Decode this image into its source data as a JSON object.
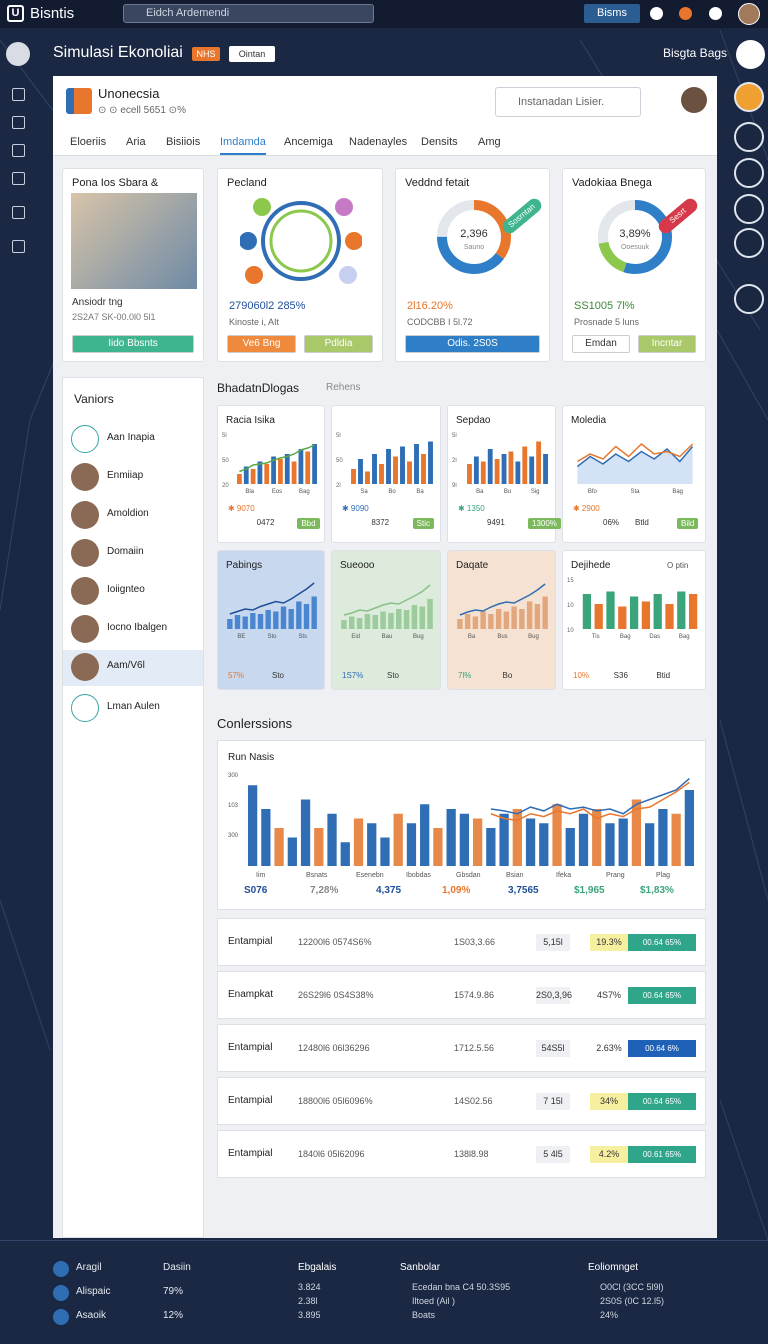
{
  "topbar": {
    "logo_mark": "U",
    "logo": "Bisntis",
    "search": "Eidch Ardemendi",
    "button": "Bisms"
  },
  "header": {
    "title": "Simulasi Ekonoliai",
    "badge": "NHS",
    "tag": "Ointan",
    "right": "Bisgta Bags"
  },
  "panel": {
    "name": "Unonecsia",
    "meta": "⊙ ⊙ ecell 5651 ⊙%",
    "search": "Instanadan Lisier."
  },
  "tabs": [
    "Eloeriis",
    "Aria",
    "Bisiiois",
    "Imdamda",
    "Ancemiga",
    "Nadenayles",
    "Densits",
    "Amg"
  ],
  "active_tab": 3,
  "cards": [
    {
      "title": "Pona Ios Sbara &",
      "line1": "Ansiodr tng",
      "line2": "2S2A7 SK-00.0l0 5l1",
      "buttons": [
        "Iido Bbsnts"
      ],
      "button_colors": [
        "#3fb58f"
      ]
    },
    {
      "title": "Pecland",
      "value": "279060l2 285%",
      "sub": "Kinoste i, AIt",
      "buttons": [
        "Ve6 Bng",
        "Pdldia"
      ],
      "button_colors": [
        "#ef8a3c",
        "#a9c86a"
      ]
    },
    {
      "title": "Veddnd fetait",
      "center": "2,396",
      "center_sub": "Sauno",
      "badge": "Sosrntan",
      "badge_color": "#3fb58f",
      "value": "2l16.20%",
      "sub": "CODCBB I 5l.72",
      "segments": [
        {
          "value": 35,
          "color": "#e8762c"
        },
        {
          "value": 40,
          "color": "#2f7fc8"
        },
        {
          "value": 25,
          "color": "#e3e6eb"
        }
      ],
      "buttons": [
        "Odis. 2S0S"
      ],
      "button_colors": [
        "#2f7fc8"
      ]
    },
    {
      "title": "Vadokiaa Bnega",
      "center": "3,89%",
      "center_sub": "Ooesuuk",
      "badge": "Sesrt",
      "badge_color": "#d63a4a",
      "value": "SS1005 7l%",
      "sub": "Prosnade 5 luns",
      "segments": [
        {
          "value": 55,
          "color": "#2f7fc8"
        },
        {
          "value": 17,
          "color": "#8cc84b"
        },
        {
          "value": 28,
          "color": "#e3e6eb"
        }
      ],
      "buttons": [
        "Emdan",
        "Incntar"
      ],
      "button_colors": [
        "#ffffff",
        "#a9c86a"
      ]
    }
  ],
  "list": {
    "title": "Vaniors",
    "items": [
      "Aan Inapia",
      "Enmiiap",
      "Amoldion",
      "Domaiin",
      "Ioiignteo",
      "Iocno Ibalgen",
      "Aam/V6l",
      "Lman Aulen"
    ],
    "selected": 6
  },
  "section1": {
    "title": "BhadatnDlogas",
    "tag": "Rehens"
  },
  "minis": [
    {
      "title": "Racia Isika",
      "bg": "#ffffff",
      "ylabels": [
        "5l",
        "50",
        "20"
      ],
      "xlabels": [
        "Bla",
        "Eos",
        "Bag"
      ],
      "bars": [
        20,
        35,
        30,
        45,
        40,
        55,
        50,
        60,
        45,
        70,
        65,
        80
      ],
      "bar_colors": [
        "#e8762c",
        "#2f6db5"
      ],
      "lines": [
        {
          "color": "#5aa84a",
          "values": [
            25,
            30,
            38,
            40,
            42,
            48,
            52,
            55,
            60,
            68,
            72,
            78
          ]
        }
      ],
      "footer": [
        "✱ 9070",
        "0472",
        "Bbd"
      ]
    },
    {
      "bg": "#ffffff",
      "ylabels": [
        "5l",
        "50",
        "2l"
      ],
      "xlabels": [
        "Sa",
        "Bo",
        "Ba"
      ],
      "bars": [
        30,
        50,
        25,
        60,
        40,
        70,
        55,
        75,
        45,
        80,
        60,
        85
      ],
      "bar_colors": [
        "#e8762c",
        "#2f6db5"
      ],
      "footer": [
        "✱ 9090",
        "8372",
        "Stic"
      ]
    },
    {
      "title": "Sepdao",
      "bg": "#ffffff",
      "ylabels": [
        "5l",
        "2l",
        "9l"
      ],
      "xlabels": [
        "Ba",
        "Bu",
        "Sig"
      ],
      "bars": [
        40,
        55,
        45,
        70,
        50,
        60,
        65,
        45,
        75,
        55,
        85,
        60
      ],
      "bar_colors": [
        "#e8762c",
        "#2f6db5"
      ],
      "footer": [
        "✱ 1350",
        "9491",
        "1300%"
      ]
    },
    {
      "title": "Moledia",
      "bg": "#ffffff",
      "xlabels": [
        "Bfo",
        "Sta",
        "Bag"
      ],
      "lines": [
        {
          "color": "#2f6db5",
          "values": [
            35,
            55,
            40,
            60,
            45,
            65,
            50,
            70,
            45,
            75
          ]
        },
        {
          "color": "#e8762c",
          "values": [
            45,
            60,
            50,
            75,
            55,
            80,
            60,
            65,
            55,
            80
          ]
        }
      ],
      "area": true,
      "footer": [
        "✱ 2900",
        "06%",
        "Btld",
        "Bild"
      ]
    },
    {
      "title": "Pabings",
      "bg": "#c7d8ef",
      "xlabels": [
        "BE",
        "Sto",
        "Sts"
      ],
      "bars": [
        20,
        28,
        25,
        32,
        30,
        38,
        35,
        45,
        40,
        55,
        50,
        65
      ],
      "bar_colors": [
        "#4a86d0"
      ],
      "lines": [
        {
          "color": "#1f4f99",
          "values": [
            30,
            35,
            40,
            38,
            45,
            50,
            55,
            52,
            60,
            70,
            80,
            92
          ]
        }
      ],
      "footer": [
        "57%",
        "Sto"
      ]
    },
    {
      "title": "Sueooo",
      "bg": "#dcebdc",
      "xlabels": [
        "Eid",
        "Bau",
        "Bug"
      ],
      "bars": [
        18,
        25,
        22,
        30,
        28,
        35,
        32,
        40,
        38,
        48,
        45,
        60
      ],
      "bar_colors": [
        "#9ccc9c"
      ],
      "lines": [
        {
          "color": "#8abf8a",
          "values": [
            28,
            32,
            38,
            36,
            42,
            48,
            52,
            50,
            58,
            66,
            75,
            88
          ]
        }
      ],
      "footer": [
        "1S7%",
        "Sto"
      ]
    },
    {
      "title": "Daqate",
      "bg": "#f6e2d3",
      "xlabels": [
        "Ba",
        "Bus",
        "Bug"
      ],
      "bars": [
        20,
        30,
        25,
        35,
        30,
        40,
        35,
        45,
        40,
        55,
        50,
        65
      ],
      "bar_colors": [
        "#e2a77d"
      ],
      "lines": [
        {
          "color": "#2f6db5",
          "values": [
            28,
            34,
            38,
            36,
            44,
            50,
            54,
            52,
            60,
            68,
            78,
            90
          ]
        }
      ],
      "footer": [
        "7l%",
        "Bo"
      ]
    },
    {
      "title": "Dejihede",
      "corner": "O ptin",
      "bg": "#ffffff",
      "ylabels": [
        "15",
        "10",
        "10"
      ],
      "xlabels": [
        "Tis",
        "Bag",
        "Das",
        "Bag"
      ],
      "bars": [
        70,
        50,
        75,
        45,
        65,
        55,
        70,
        50,
        75,
        70
      ],
      "bar_colors": [
        "#3aa57a",
        "#e8762c"
      ],
      "footer": [
        "10%",
        "S36",
        "Btid"
      ]
    }
  ],
  "section2": {
    "title": "Conlerssions"
  },
  "big_chart": {
    "title": "Run Nasis",
    "ylabels": [
      "300",
      "103",
      "300"
    ],
    "xlabels": [
      "Iim",
      "Bsnats",
      "Esenebn",
      "Ibobdas",
      "Gbsdan",
      "Bsian",
      "Ifeka",
      "Prang",
      "Plag"
    ],
    "bars": [
      85,
      60,
      40,
      30,
      70,
      40,
      55,
      25,
      50,
      45,
      30,
      55,
      45,
      65,
      40,
      60,
      55,
      50,
      40,
      55,
      60,
      50,
      45,
      65,
      40,
      55,
      60,
      45,
      50,
      70,
      45,
      60,
      55,
      80
    ],
    "bar_colors": [
      "#2f6db5",
      "#2f6db5",
      "#e8894a"
    ],
    "lines": [
      {
        "color": "#2f6db5",
        "values": [
          null,
          null,
          null,
          null,
          null,
          null,
          null,
          null,
          null,
          null,
          null,
          null,
          null,
          null,
          null,
          null,
          null,
          null,
          60,
          58,
          55,
          62,
          58,
          65,
          60,
          62,
          58,
          60,
          55,
          65,
          70,
          75,
          80,
          92
        ]
      },
      {
        "color": "#e8762c",
        "values": [
          null,
          null,
          null,
          null,
          null,
          null,
          null,
          null,
          null,
          null,
          null,
          null,
          null,
          null,
          null,
          null,
          null,
          null,
          55,
          50,
          48,
          55,
          52,
          58,
          55,
          60,
          50,
          55,
          52,
          60,
          62,
          70,
          78,
          88
        ]
      }
    ],
    "summary": [
      "S076",
      "7,28%",
      "4,375",
      "1,09%",
      "3,7565",
      "$1,965",
      "$1,83%"
    ],
    "summary_colors": [
      "#1f4f99",
      "#888888",
      "#1f4f99",
      "#e8762c",
      "#1f4f99",
      "#3aa57a",
      "#3aa57a"
    ]
  },
  "table": {
    "rows": [
      [
        "Entampial",
        "12200l6 0574S6%",
        "1S03,3.66",
        "5,15l",
        "19.3%",
        "00.64 65%"
      ],
      [
        "Enampkat",
        "26S29l6 0S4S38%",
        "1574.9.86",
        "2S0,3,96",
        "4S7%",
        "00.64 65%"
      ],
      [
        "Entampial",
        "12480l6 06l36296",
        "1712.5.56",
        "54S5l",
        "2.63%",
        "00.64 6%"
      ],
      [
        "Entampial",
        "18800l6 05l6096%",
        "14S02.56",
        "7 15l",
        "34%",
        "00.64 65%"
      ],
      [
        "Entampial",
        "1840l6 05l62096",
        "138l8.98",
        "5 4l5",
        "4.2%",
        "00.61 65%"
      ]
    ],
    "pct_bg": [
      "#f7efa0",
      "#ffffff",
      "#ffffff",
      "#f7efa0",
      "#f7efa0"
    ],
    "bar_colors": [
      "#2fa58a",
      "#2fa58a",
      "#2061b8",
      "#2fa58a",
      "#2fa58a"
    ]
  },
  "footer": {
    "col1": [
      [
        "Aragil",
        "Dasiin"
      ],
      [
        "Alispaic",
        "79%"
      ],
      [
        "Asaoik",
        "12%"
      ]
    ],
    "col2": {
      "title": "Ebgalais",
      "items": [
        "3.824",
        "2.38l",
        "3.895"
      ]
    },
    "col3": {
      "title": "Sanbolar",
      "items": [
        "Ecedan bna C4 50.3S95",
        "Iltoed (Ail )",
        "Boats"
      ]
    },
    "col4": {
      "title": "Eoliomnget",
      "items": [
        "O0Cl (3CC 5l9l)",
        "2S0S (0C 12.l5)",
        "24%"
      ]
    }
  }
}
